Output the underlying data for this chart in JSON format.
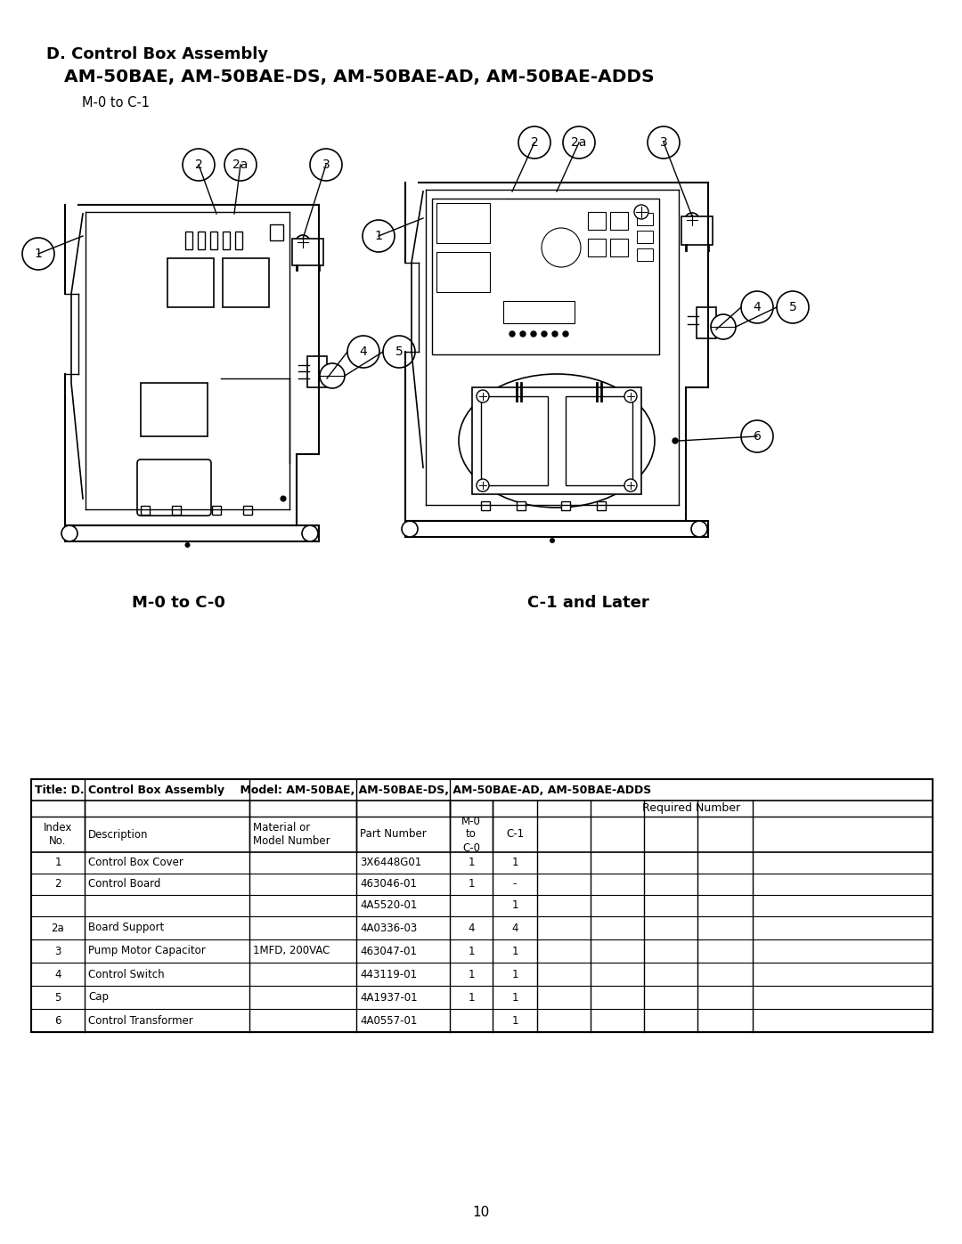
{
  "page_bg": "#ffffff",
  "title_line1": "D. Control Box Assembly",
  "title_line2": "    AM-50BAE, AM-50BAE-DS, AM-50BAE-AD, AM-50BAE-ADDS",
  "title_line3": "        M-0 to C-1",
  "diagram_left_label": "M-0 to C-0",
  "diagram_right_label": "C-1 and Later",
  "page_number": "10",
  "table_rows": [
    [
      "1",
      "Control Box Cover",
      "",
      "3X6448G01",
      "1",
      "1"
    ],
    [
      "2",
      "Control Board",
      "",
      "463046-01",
      "1",
      "-"
    ],
    [
      "",
      "",
      "",
      "4A5520-01",
      "",
      "1"
    ],
    [
      "2a",
      "Board Support",
      "",
      "4A0336-03",
      "4",
      "4"
    ],
    [
      "3",
      "Pump Motor Capacitor",
      "1MFD, 200VAC",
      "463047-01",
      "1",
      "1"
    ],
    [
      "4",
      "Control Switch",
      "",
      "443119-01",
      "1",
      "1"
    ],
    [
      "5",
      "Cap",
      "",
      "4A1937-01",
      "1",
      "1"
    ],
    [
      "6",
      "Control Transformer",
      "",
      "4A0557-01",
      "",
      "1"
    ]
  ]
}
